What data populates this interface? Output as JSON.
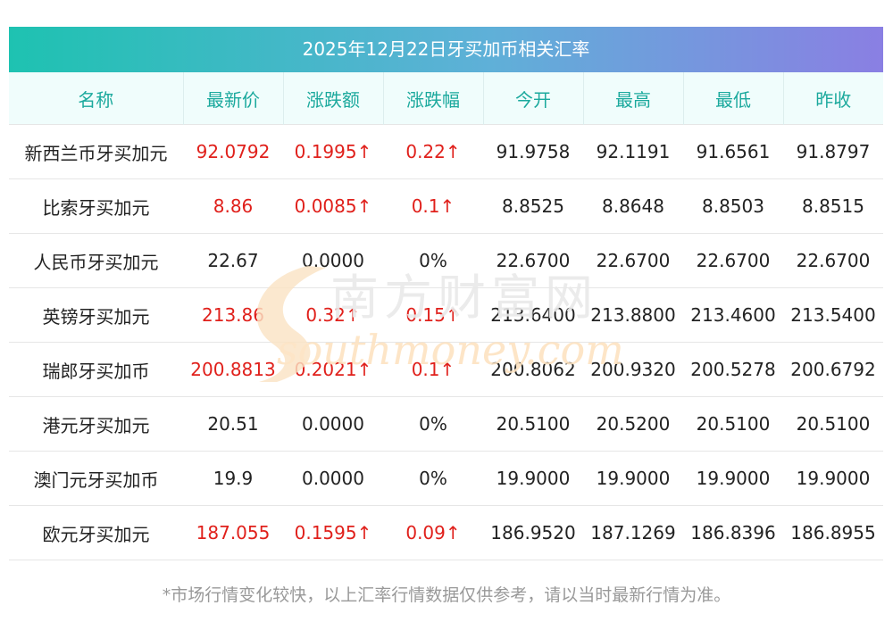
{
  "title": "2025年12月22日牙买加币相关汇率",
  "columns": [
    "名称",
    "最新价",
    "涨跌额",
    "涨跌幅",
    "今开",
    "最高",
    "最低",
    "昨收"
  ],
  "rows": [
    {
      "name": "新西兰币牙买加元",
      "latest": "92.0792",
      "change": "0.1995↑",
      "pct": "0.22↑",
      "open": "91.9758",
      "high": "92.1191",
      "low": "91.6561",
      "prev": "91.8797",
      "up": true
    },
    {
      "name": "比索牙买加元",
      "latest": "8.86",
      "change": "0.0085↑",
      "pct": "0.1↑",
      "open": "8.8525",
      "high": "8.8648",
      "low": "8.8503",
      "prev": "8.8515",
      "up": true
    },
    {
      "name": "人民币牙买加元",
      "latest": "22.67",
      "change": "0.0000",
      "pct": "0%",
      "open": "22.6700",
      "high": "22.6700",
      "low": "22.6700",
      "prev": "22.6700",
      "up": false
    },
    {
      "name": "英镑牙买加元",
      "latest": "213.86",
      "change": "0.32↑",
      "pct": "0.15↑",
      "open": "213.6400",
      "high": "213.8800",
      "low": "213.4600",
      "prev": "213.5400",
      "up": true
    },
    {
      "name": "瑞郎牙买加币",
      "latest": "200.8813",
      "change": "0.2021↑",
      "pct": "0.1↑",
      "open": "200.8062",
      "high": "200.9320",
      "low": "200.5278",
      "prev": "200.6792",
      "up": true
    },
    {
      "name": "港元牙买加元",
      "latest": "20.51",
      "change": "0.0000",
      "pct": "0%",
      "open": "20.5100",
      "high": "20.5200",
      "low": "20.5100",
      "prev": "20.5100",
      "up": false
    },
    {
      "name": "澳门元牙买加币",
      "latest": "19.9",
      "change": "0.0000",
      "pct": "0%",
      "open": "19.9000",
      "high": "19.9000",
      "low": "19.9000",
      "prev": "19.9000",
      "up": false
    },
    {
      "name": "欧元牙买加元",
      "latest": "187.055",
      "change": "0.1595↑",
      "pct": "0.09↑",
      "open": "186.9520",
      "high": "187.1269",
      "low": "186.8396",
      "prev": "186.8955",
      "up": true
    }
  ],
  "watermark": {
    "cn": "南方财富网",
    "en": "southmoney.com"
  },
  "footnote": "*市场行情变化较快，以上汇率行情数据仅供参考，请以当时最新行情为准。",
  "colors": {
    "up": "#e0201b",
    "header_text": "#1ba99d",
    "header_bg": "#f0fdfc",
    "title_from": "#1ec2b1",
    "title_to": "#8a7fe3"
  }
}
